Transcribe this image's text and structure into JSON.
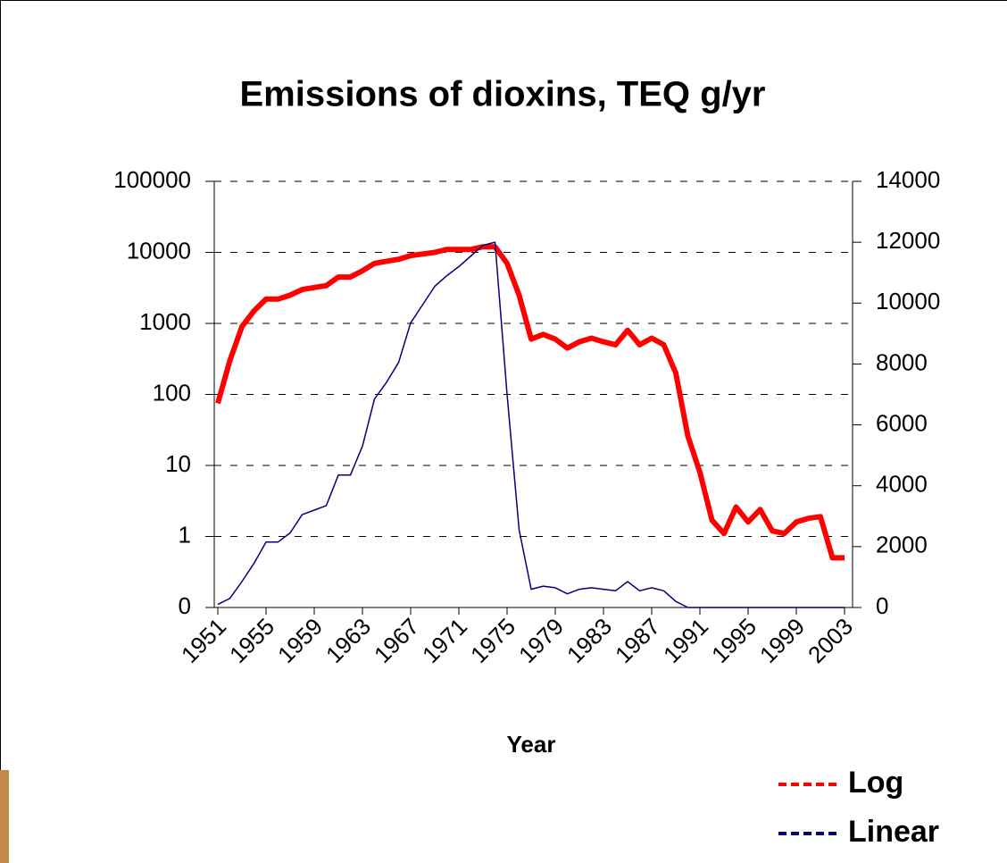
{
  "chart_data": {
    "type": "line",
    "title": "Emissions of dioxins, TEQ g/yr",
    "x_label": "Year",
    "x": [
      1951,
      1952,
      1953,
      1954,
      1955,
      1956,
      1957,
      1958,
      1959,
      1960,
      1961,
      1962,
      1963,
      1964,
      1965,
      1966,
      1967,
      1968,
      1969,
      1970,
      1971,
      1972,
      1973,
      1974,
      1975,
      1976,
      1977,
      1978,
      1979,
      1980,
      1981,
      1982,
      1983,
      1984,
      1985,
      1986,
      1987,
      1988,
      1989,
      1990,
      1991,
      1992,
      1993,
      1994,
      1995,
      1996,
      1997,
      1998,
      1999,
      2000,
      2001,
      2002,
      2003
    ],
    "xlim": [
      1951,
      2003
    ],
    "xticks": [
      1951,
      1955,
      1959,
      1963,
      1967,
      1971,
      1975,
      1979,
      1983,
      1987,
      1991,
      1995,
      1999,
      2003
    ],
    "ylim": [
      0.1,
      100000
    ],
    "yscale": "log",
    "yticks": [
      {
        "value": 0.1,
        "label": "0"
      },
      1,
      10,
      100,
      1000,
      10000,
      100000
    ],
    "y2lim": [
      0,
      14000
    ],
    "y2ticks": [
      0,
      2000,
      4000,
      6000,
      8000,
      10000,
      12000,
      14000
    ],
    "grid": true,
    "legend": "bottom-right",
    "series": [
      {
        "name": "Log",
        "color": "#ff0000",
        "axis": "y",
        "values": [
          75,
          300,
          900,
          1500,
          2200,
          2200,
          2500,
          3000,
          3200,
          3400,
          4500,
          4500,
          5500,
          7000,
          7500,
          8000,
          9000,
          9500,
          10000,
          11000,
          11000,
          11000,
          12000,
          12000,
          7000,
          2500,
          600,
          700,
          600,
          450,
          550,
          620,
          550,
          500,
          800,
          500,
          620,
          500,
          200,
          26,
          8,
          1.7,
          1.1,
          2.6,
          1.6,
          2.4,
          1.2,
          1.1,
          1.6,
          1.8,
          1.9,
          0.5,
          0.5
        ]
      },
      {
        "name": "Linear",
        "color": "#000080",
        "axis": "y2",
        "values": [
          100,
          300,
          850,
          1450,
          2150,
          2150,
          2450,
          3050,
          3200,
          3350,
          4350,
          4350,
          5300,
          6850,
          7400,
          8050,
          9350,
          9950,
          10550,
          10900,
          11200,
          11550,
          11900,
          12000,
          7000,
          2550,
          600,
          700,
          650,
          450,
          600,
          650,
          600,
          550,
          850,
          550,
          650,
          550,
          200,
          0,
          0,
          0,
          0,
          0,
          0,
          0,
          0,
          0,
          0,
          0,
          0,
          0,
          0
        ]
      }
    ]
  }
}
